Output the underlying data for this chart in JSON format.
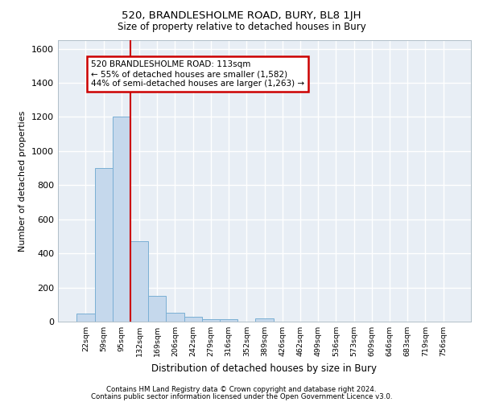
{
  "title_line1": "520, BRANDLESHOLME ROAD, BURY, BL8 1JH",
  "title_line2": "Size of property relative to detached houses in Bury",
  "xlabel": "Distribution of detached houses by size in Bury",
  "ylabel": "Number of detached properties",
  "categories": [
    "22sqm",
    "59sqm",
    "95sqm",
    "132sqm",
    "169sqm",
    "206sqm",
    "242sqm",
    "279sqm",
    "316sqm",
    "352sqm",
    "389sqm",
    "426sqm",
    "462sqm",
    "499sqm",
    "536sqm",
    "573sqm",
    "609sqm",
    "646sqm",
    "683sqm",
    "719sqm",
    "756sqm"
  ],
  "values": [
    45,
    900,
    1200,
    470,
    150,
    50,
    30,
    15,
    15,
    0,
    20,
    0,
    0,
    0,
    0,
    0,
    0,
    0,
    0,
    0,
    0
  ],
  "bar_color": "#c5d8ec",
  "bar_edge_color": "#7aafd4",
  "vline_color": "#cc0000",
  "vline_x_index": 2.5,
  "ylim": [
    0,
    1650
  ],
  "yticks": [
    0,
    200,
    400,
    600,
    800,
    1000,
    1200,
    1400,
    1600
  ],
  "annotation_text": "520 BRANDLESHOLME ROAD: 113sqm\n← 55% of detached houses are smaller (1,582)\n44% of semi-detached houses are larger (1,263) →",
  "annotation_box_color": "#cc0000",
  "background_color": "#e8eef5",
  "grid_color": "#ffffff",
  "footer_line1": "Contains HM Land Registry data © Crown copyright and database right 2024.",
  "footer_line2": "Contains public sector information licensed under the Open Government Licence v3.0."
}
